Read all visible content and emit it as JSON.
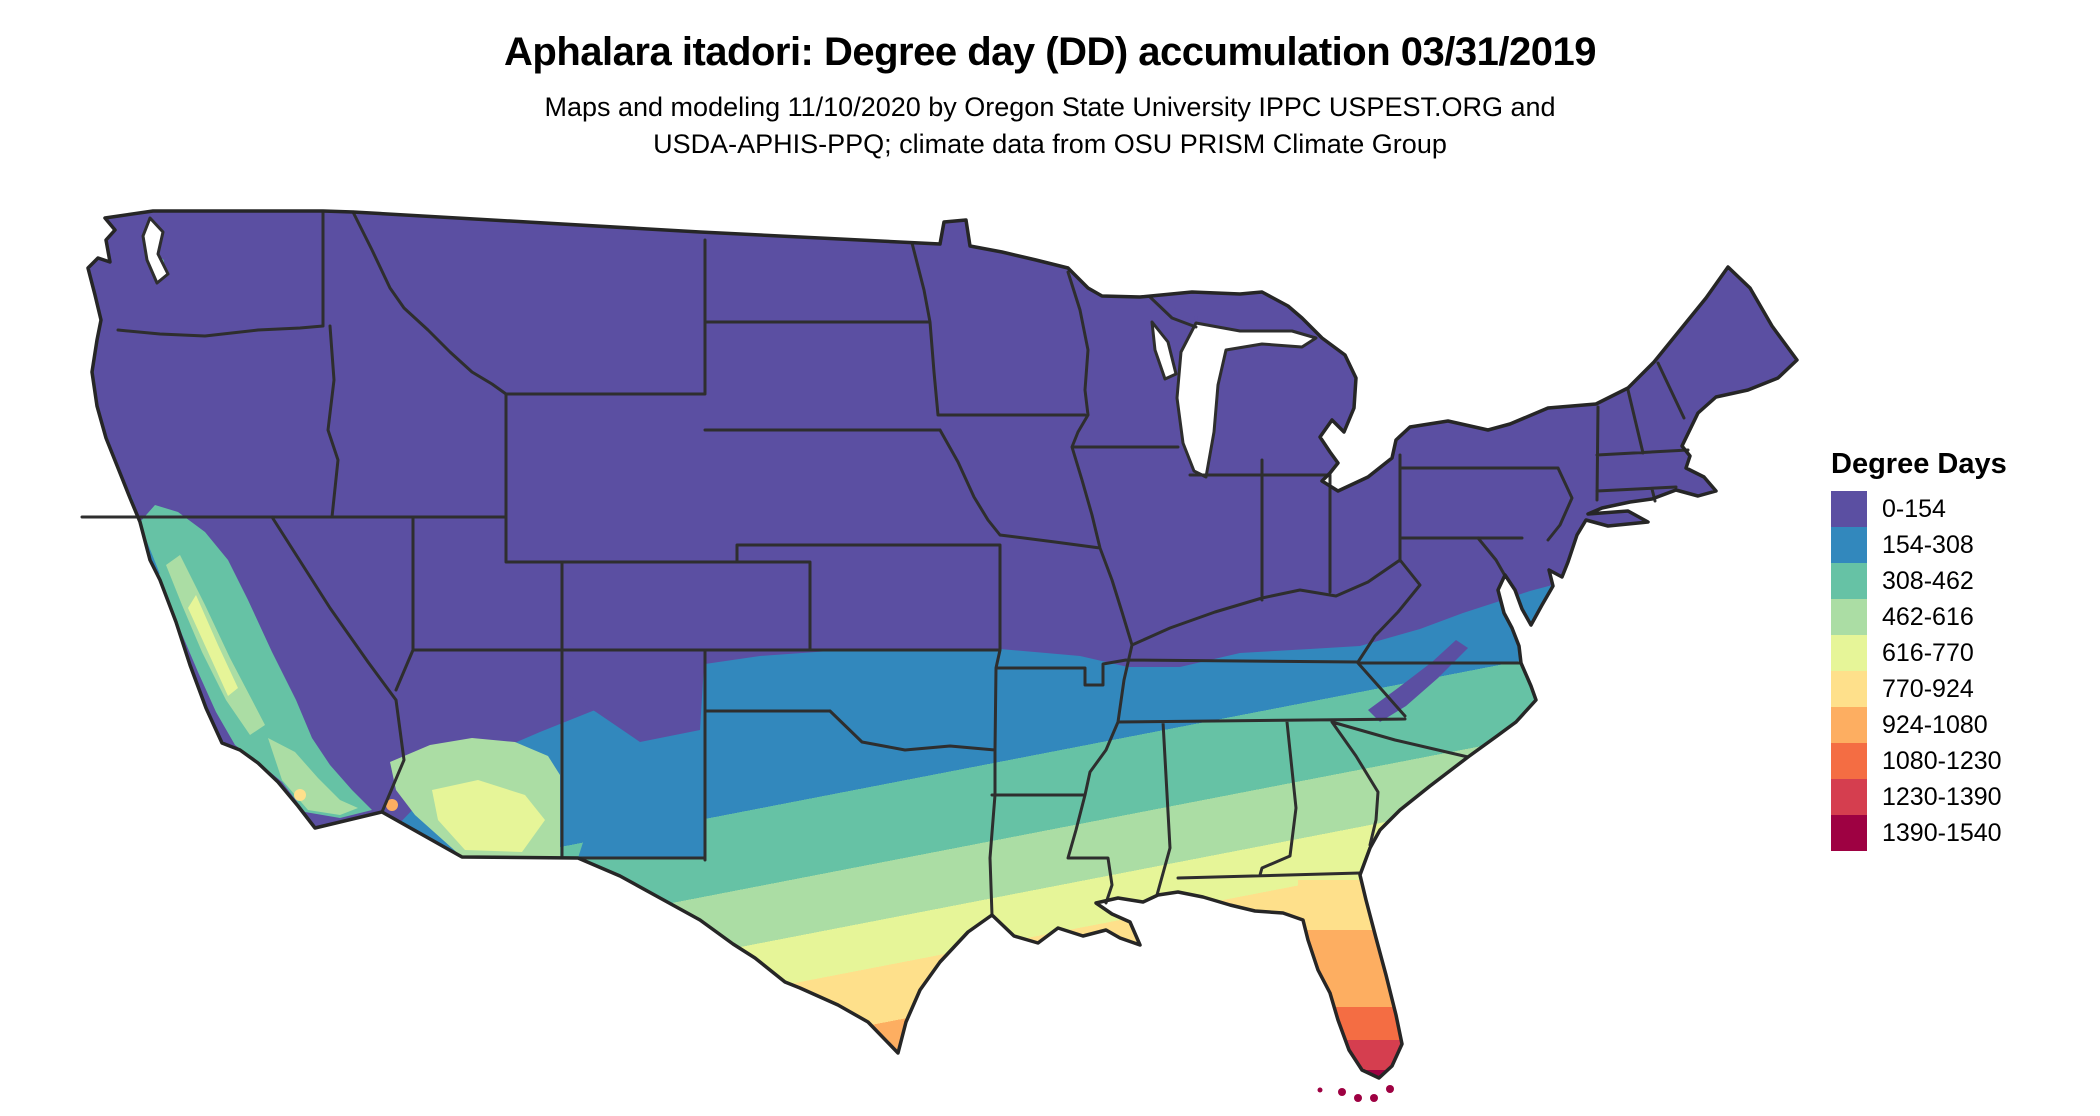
{
  "header": {
    "title": "Aphalara itadori: Degree day (DD) accumulation 03/31/2019",
    "subtitle_line1": "Maps and modeling 11/10/2020 by Oregon State University IPPC USPEST.ORG and",
    "subtitle_line2": "USDA-APHIS-PPQ; climate data from OSU PRISM Climate Group"
  },
  "legend": {
    "title": "Degree Days",
    "items": [
      {
        "label": "0-154",
        "color": "#5b4fa2"
      },
      {
        "label": "154-308",
        "color": "#3288bd"
      },
      {
        "label": "308-462",
        "color": "#66c2a5"
      },
      {
        "label": "462-616",
        "color": "#abdda4"
      },
      {
        "label": "616-770",
        "color": "#e6f598"
      },
      {
        "label": "770-924",
        "color": "#fee08b"
      },
      {
        "label": "924-1080",
        "color": "#fdae61"
      },
      {
        "label": "1080-1230",
        "color": "#f46d43"
      },
      {
        "label": "1230-1390",
        "color": "#d53e4f"
      },
      {
        "label": "1390-1540",
        "color": "#9e0142"
      }
    ]
  },
  "map": {
    "region": "Contiguous United States",
    "metric": "Degree day (DD) accumulation",
    "date": "03/31/2019",
    "border_color": "#2e2e2e",
    "background": "#ffffff"
  }
}
